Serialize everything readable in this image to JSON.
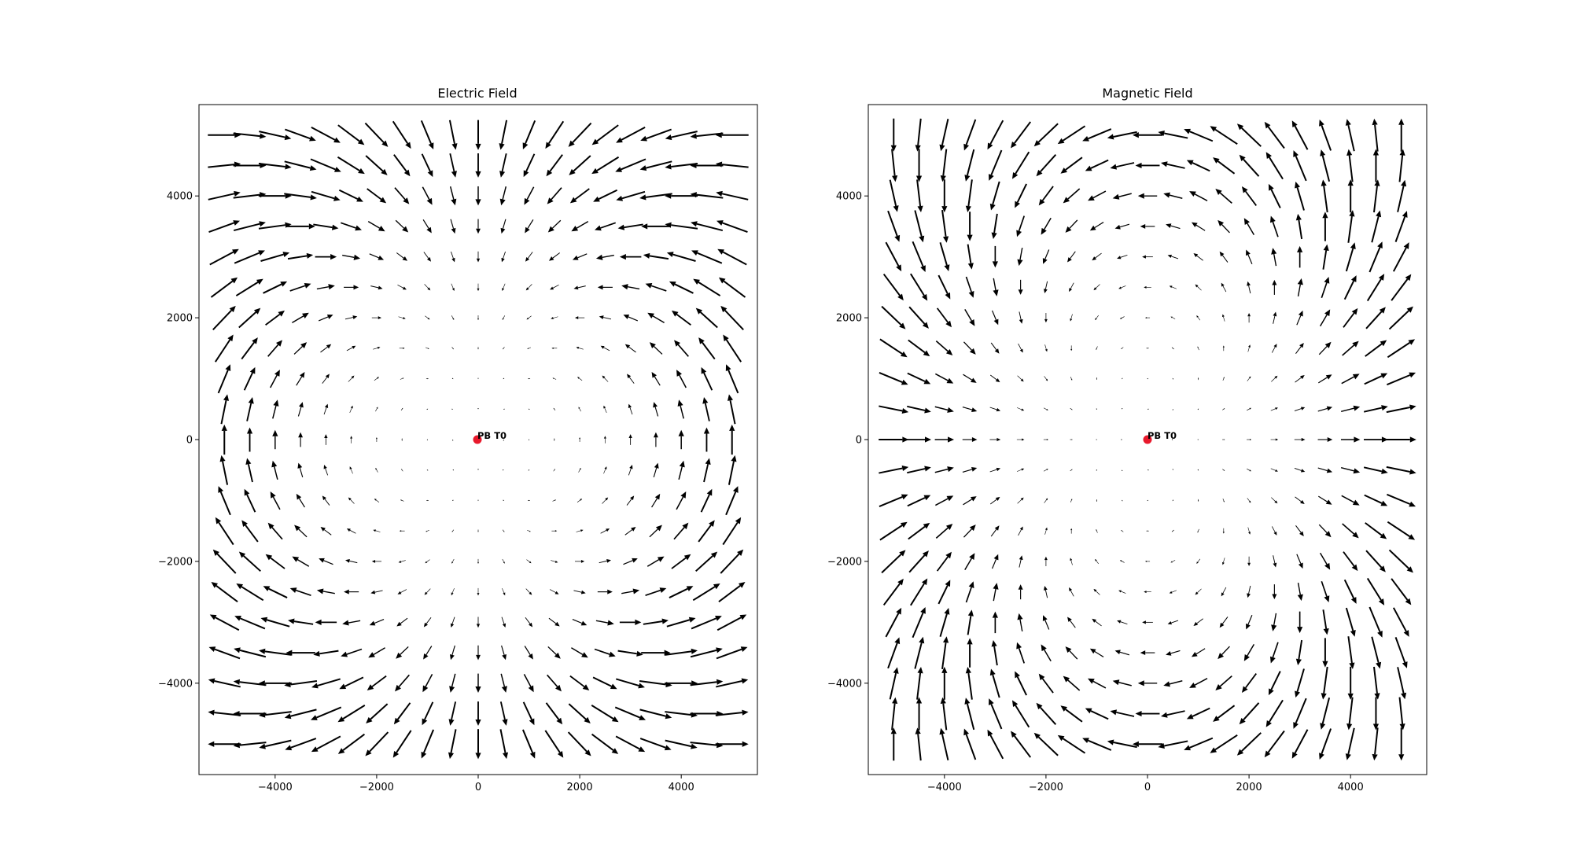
{
  "chart_data": [
    {
      "type": "quiver",
      "title": "Electric Field",
      "field": "electric",
      "xlabel": "",
      "ylabel": "",
      "xlim": [
        -5500,
        5500
      ],
      "ylim": [
        -5500,
        5500
      ],
      "x_ticks": [
        -4000,
        -2000,
        0,
        2000,
        4000
      ],
      "x_tick_labels": [
        "−4000",
        "−2000",
        "0",
        "2000",
        "4000"
      ],
      "y_ticks": [
        -4000,
        -2000,
        0,
        2000,
        4000
      ],
      "y_tick_labels": [
        "−4000",
        "−2000",
        "0",
        "2000",
        "4000"
      ],
      "grid_range": [
        -5000,
        5000
      ],
      "grid_step": 500,
      "grid": false,
      "arrow_color": "#000000",
      "marker": {
        "x": 0,
        "y": 0,
        "label": "PB T0",
        "color": "#e8192c"
      }
    },
    {
      "type": "quiver",
      "title": "Magnetic Field",
      "field": "magnetic",
      "xlabel": "",
      "ylabel": "",
      "xlim": [
        -5500,
        5500
      ],
      "ylim": [
        -5500,
        5500
      ],
      "x_ticks": [
        -4000,
        -2000,
        0,
        2000,
        4000
      ],
      "x_tick_labels": [
        "−4000",
        "−2000",
        "0",
        "2000",
        "4000"
      ],
      "y_ticks": [
        -4000,
        -2000,
        0,
        2000,
        4000
      ],
      "y_tick_labels": [
        "−4000",
        "−2000",
        "0",
        "2000",
        "4000"
      ],
      "grid_range": [
        -5000,
        5000
      ],
      "grid_step": 500,
      "grid": false,
      "arrow_color": "#000000",
      "marker": {
        "x": 0,
        "y": 0,
        "label": "PB T0",
        "color": "#e8192c"
      }
    }
  ]
}
